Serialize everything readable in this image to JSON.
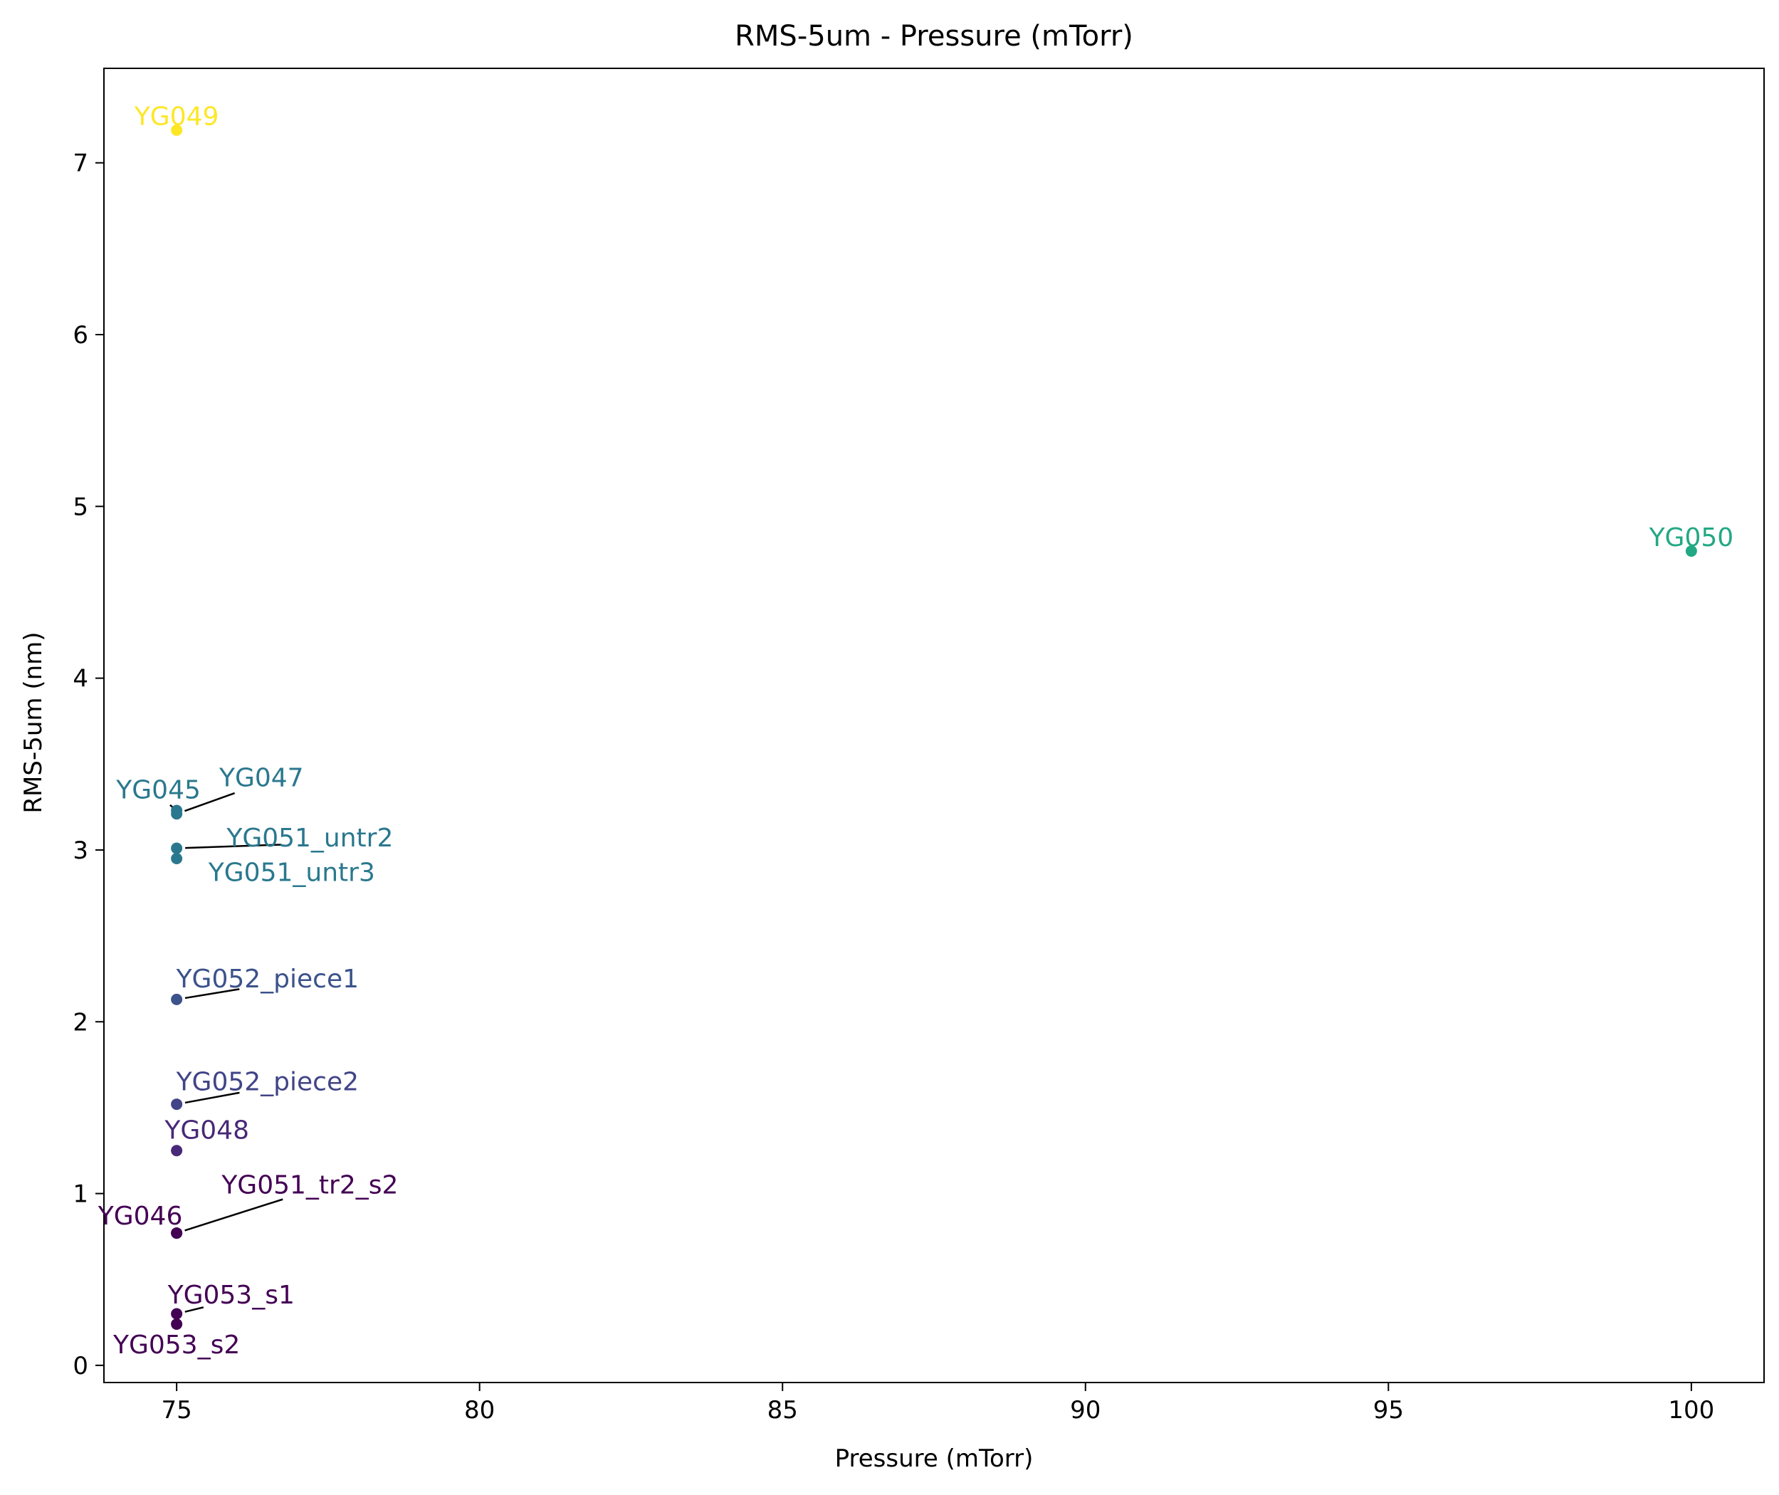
{
  "chart_data": {
    "type": "scatter",
    "title": "RMS-5um - Pressure (mTorr)",
    "xlabel": "Pressure (mTorr)",
    "ylabel": "RMS-5um (nm)",
    "xlim": [
      73.8,
      101.2
    ],
    "ylim": [
      -0.1,
      7.55
    ],
    "xticks": [
      75,
      80,
      85,
      90,
      95,
      100
    ],
    "yticks": [
      0,
      1,
      2,
      3,
      4,
      5,
      6,
      7
    ],
    "grid": false,
    "legend": "none",
    "points": [
      {
        "label": "YG049",
        "x": 75,
        "y": 7.19,
        "color": "#fde725",
        "label_x": 75.0,
        "label_y": 7.27,
        "connector": false
      },
      {
        "label": "YG050",
        "x": 100,
        "y": 4.74,
        "color": "#22a884",
        "label_x": 100.0,
        "label_y": 4.82,
        "connector": false
      },
      {
        "label": "YG045",
        "x": 75,
        "y": 3.23,
        "color": "#2a788e",
        "label_x": 74.7,
        "label_y": 3.35,
        "connector": true
      },
      {
        "label": "YG047",
        "x": 75,
        "y": 3.21,
        "color": "#2a788e",
        "label_x": 76.4,
        "label_y": 3.42,
        "connector": true
      },
      {
        "label": "YG051_untr2",
        "x": 75,
        "y": 3.01,
        "color": "#2a788e",
        "label_x": 77.2,
        "label_y": 3.07,
        "connector": true
      },
      {
        "label": "YG051_untr3",
        "x": 75,
        "y": 2.95,
        "color": "#2a788e",
        "label_x": 76.9,
        "label_y": 2.87,
        "connector": false
      },
      {
        "label": "YG052_piece1",
        "x": 75,
        "y": 2.13,
        "color": "#3b528b",
        "label_x": 76.5,
        "label_y": 2.25,
        "connector": true
      },
      {
        "label": "YG052_piece2",
        "x": 75,
        "y": 1.52,
        "color": "#414487",
        "label_x": 76.5,
        "label_y": 1.65,
        "connector": true
      },
      {
        "label": "YG048",
        "x": 75,
        "y": 1.25,
        "color": "#482878",
        "label_x": 75.5,
        "label_y": 1.37,
        "connector": false
      },
      {
        "label": "YG046",
        "x": 75,
        "y": 0.77,
        "color": "#440154",
        "label_x": 74.4,
        "label_y": 0.87,
        "connector": false
      },
      {
        "label": "YG051_tr2_s2",
        "x": 75,
        "y": 0.77,
        "color": "#440154",
        "label_x": 77.2,
        "label_y": 1.05,
        "connector": true
      },
      {
        "label": "YG053_s1",
        "x": 75,
        "y": 0.3,
        "color": "#440154",
        "label_x": 75.9,
        "label_y": 0.41,
        "connector": true
      },
      {
        "label": "YG053_s2",
        "x": 75,
        "y": 0.24,
        "color": "#440154",
        "label_x": 75.0,
        "label_y": 0.12,
        "connector": false
      }
    ]
  }
}
